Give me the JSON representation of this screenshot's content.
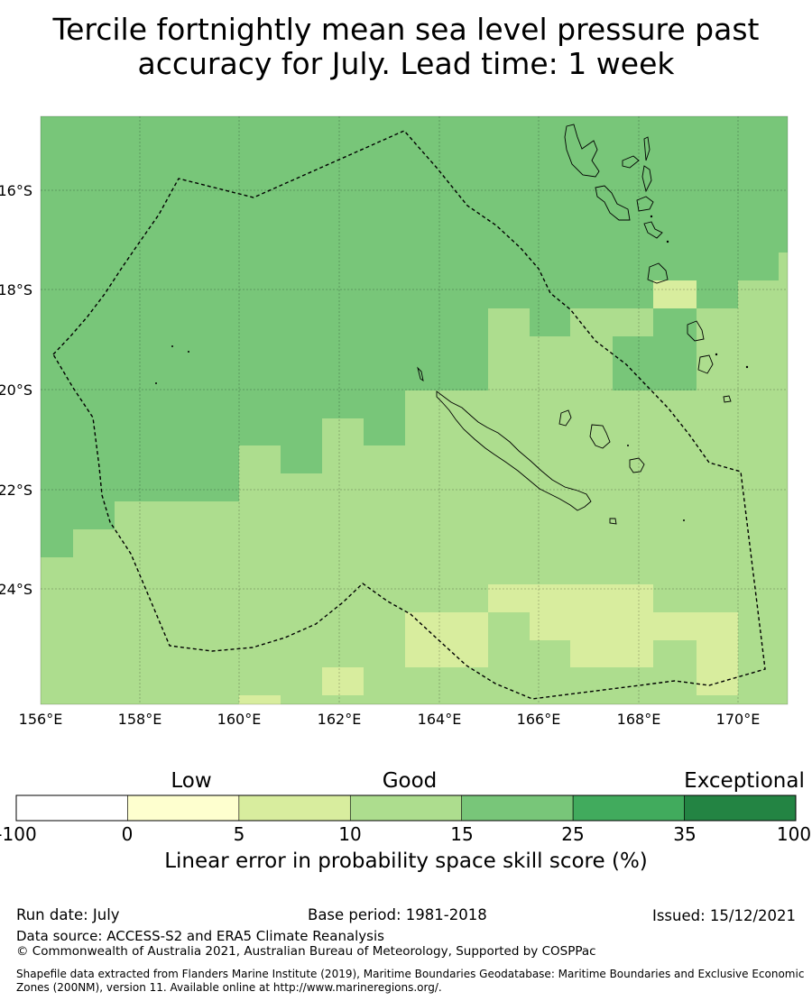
{
  "title_line1": "Tercile fortnightly mean sea level pressure past",
  "title_line2": "accuracy for July. Lead time: 1 week",
  "map": {
    "lon_labels": [
      "156°E",
      "158°E",
      "160°E",
      "162°E",
      "164°E",
      "166°E",
      "168°E",
      "170°E"
    ],
    "lat_labels": [
      "16°S",
      "18°S",
      "20°S",
      "22°S",
      "24°S"
    ],
    "colors": {
      "c0_5": "#feffcf",
      "c5_10": "#d8ed9e",
      "c10_15": "#addd8e",
      "c15_25": "#78c679",
      "c25_35": "#41ab5d",
      "c35_100": "#238443"
    }
  },
  "colorbar": {
    "categories": [
      "Low",
      "Good",
      "Exceptional"
    ],
    "ticks": [
      "-100",
      "0",
      "5",
      "10",
      "15",
      "25",
      "35",
      "100"
    ],
    "colors": [
      "#ffffff",
      "#feffcf",
      "#d8ed9e",
      "#addd8e",
      "#78c679",
      "#41ab5d",
      "#238443"
    ],
    "label": "Linear error in probability space skill score (%)"
  },
  "footer": {
    "run_date": "Run date: July",
    "base_period": "Base period: 1981-2018",
    "issued": "Issued: 15/12/2021",
    "data_source": "Data source: ACCESS-S2 and ERA5 Climate Reanalysis",
    "copyright": "© Commonwealth of Australia 2021, Australian Bureau of Meteorology, Supported by COSPPac",
    "shapefile": "Shapefile data extracted from Flanders Marine Institute (2019), Maritime Boundaries Geodatabase: Maritime Boundaries and Exclusive Economic Zones (200NM), version 11. Available online at http://www.marineregions.org/."
  }
}
